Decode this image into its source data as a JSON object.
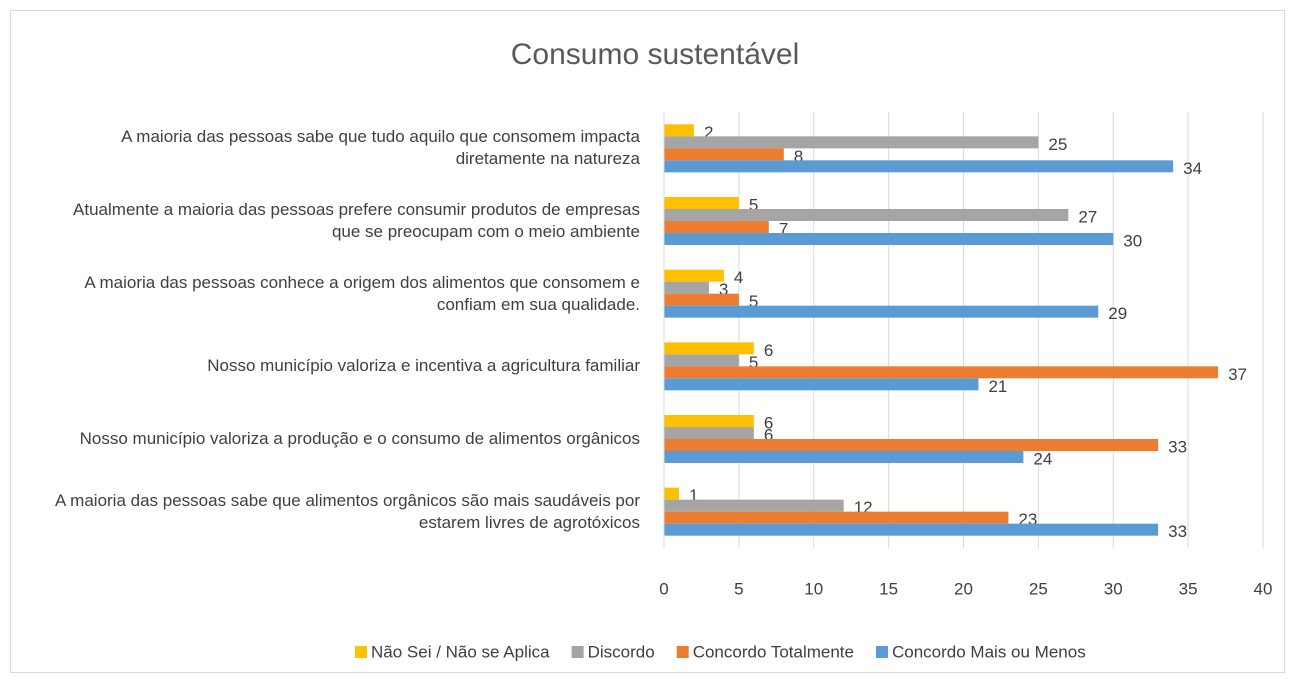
{
  "chart_data": {
    "type": "hbar",
    "title": "Consumo sustentável",
    "categories": [
      "A maioria das pessoas sabe que tudo aquilo que consomem impacta diretamente na natureza",
      "Atualmente a maioria das pessoas prefere consumir produtos de empresas que se preocupam com o meio ambiente",
      "A maioria das pessoas conhece a origem dos alimentos que consomem e confiam em sua qualidade.",
      "Nosso município valoriza e incentiva a agricultura familiar",
      "Nosso município valoriza a produção e o consumo de alimentos orgânicos",
      "A maioria das pessoas sabe que alimentos orgânicos são mais saudáveis por estarem livres de agrotóxicos"
    ],
    "series": [
      {
        "name": "Não Sei / Não se Aplica",
        "color": "#ffc000",
        "values": [
          2,
          5,
          4,
          6,
          6,
          1
        ]
      },
      {
        "name": "Discordo",
        "color": "#a5a5a5",
        "values": [
          25,
          27,
          3,
          5,
          6,
          12
        ]
      },
      {
        "name": "Concordo Totalmente",
        "color": "#ed7d31",
        "values": [
          8,
          7,
          5,
          37,
          33,
          23
        ]
      },
      {
        "name": "Concordo Mais ou Menos",
        "color": "#5b9bd5",
        "values": [
          34,
          30,
          29,
          21,
          24,
          33
        ]
      }
    ],
    "xlim": [
      0,
      40
    ],
    "xticks": [
      0,
      5,
      10,
      15,
      20,
      25,
      30,
      35,
      40
    ],
    "grid": true,
    "legend": "bottom"
  }
}
